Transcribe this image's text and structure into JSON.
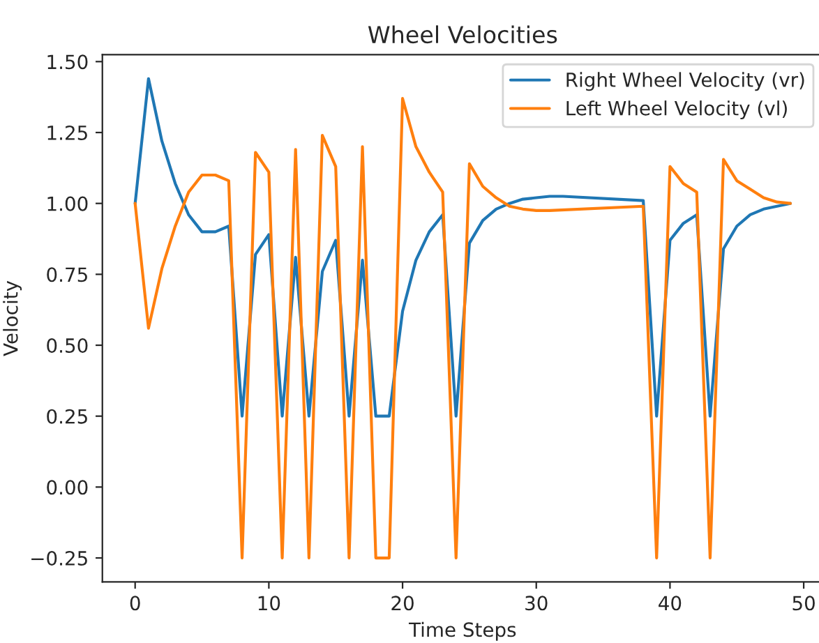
{
  "chart_data": {
    "type": "line",
    "title": "Wheel Velocities",
    "xlabel": "Time Steps",
    "ylabel": "Velocity",
    "series": [
      {
        "name": "Right Wheel Velocity (vr)",
        "color": "#1f77b4",
        "x": [
          0,
          1,
          2,
          3,
          4,
          5,
          6,
          7,
          8,
          9,
          10,
          11,
          12,
          13,
          14,
          15,
          16,
          17,
          18,
          19,
          20,
          21,
          22,
          23,
          24,
          25,
          26,
          27,
          28,
          29,
          30,
          31,
          32,
          38,
          39,
          40,
          41,
          42,
          43,
          44,
          45,
          46,
          47,
          48,
          49
        ],
        "values": [
          1.0,
          1.44,
          1.22,
          1.07,
          0.96,
          0.9,
          0.9,
          0.92,
          0.25,
          0.82,
          0.89,
          0.25,
          0.81,
          0.25,
          0.76,
          0.87,
          0.25,
          0.8,
          0.25,
          0.25,
          0.62,
          0.8,
          0.9,
          0.96,
          0.25,
          0.86,
          0.94,
          0.98,
          1.0,
          1.015,
          1.02,
          1.025,
          1.025,
          1.01,
          0.25,
          0.87,
          0.93,
          0.96,
          0.25,
          0.84,
          0.92,
          0.96,
          0.98,
          0.99,
          1.0
        ]
      },
      {
        "name": "Left Wheel Velocity (vl)",
        "color": "#ff7f0e",
        "x": [
          0,
          1,
          2,
          3,
          4,
          5,
          6,
          7,
          8,
          9,
          10,
          11,
          12,
          13,
          14,
          15,
          16,
          17,
          18,
          19,
          20,
          21,
          22,
          23,
          24,
          25,
          26,
          27,
          28,
          29,
          30,
          31,
          38,
          39,
          40,
          41,
          42,
          43,
          44,
          45,
          46,
          47,
          48,
          49
        ],
        "values": [
          1.0,
          0.56,
          0.77,
          0.92,
          1.04,
          1.1,
          1.1,
          1.08,
          -0.25,
          1.18,
          1.11,
          -0.25,
          1.19,
          -0.25,
          1.24,
          1.13,
          -0.25,
          1.2,
          -0.25,
          -0.25,
          1.37,
          1.2,
          1.11,
          1.04,
          -0.25,
          1.14,
          1.06,
          1.02,
          0.99,
          0.98,
          0.975,
          0.975,
          0.99,
          -0.25,
          1.13,
          1.07,
          1.04,
          -0.25,
          1.155,
          1.08,
          1.05,
          1.02,
          1.005,
          1.0
        ]
      }
    ],
    "xlim": [
      -2.45,
      51.45
    ],
    "ylim": [
      -0.3345,
      1.5245
    ],
    "xticks": [
      0,
      10,
      20,
      30,
      40,
      50
    ],
    "yticks": [
      {
        "value": -0.25,
        "label": "−0.25"
      },
      {
        "value": 0,
        "label": "0.00"
      },
      {
        "value": 0.25,
        "label": "0.25"
      },
      {
        "value": 0.5,
        "label": "0.50"
      },
      {
        "value": 0.75,
        "label": "0.75"
      },
      {
        "value": 1.0,
        "label": "1.00"
      },
      {
        "value": 1.25,
        "label": "1.25"
      },
      {
        "value": 1.5,
        "label": "1.50"
      }
    ],
    "legend": "top right",
    "grid": false,
    "marker": "none",
    "line_style": "solid"
  }
}
